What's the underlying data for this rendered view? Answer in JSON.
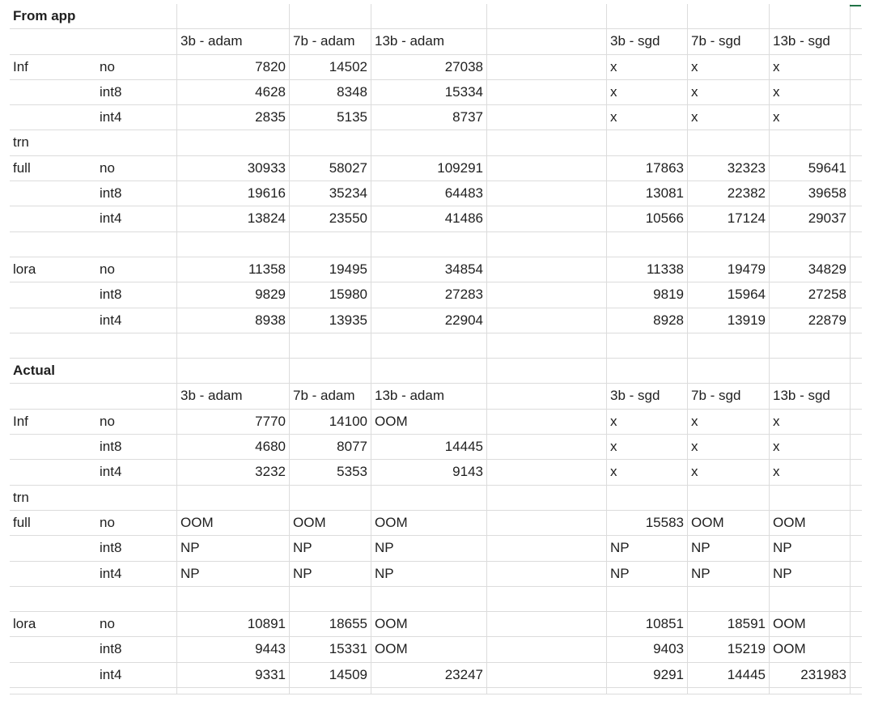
{
  "sheet": {
    "columns_header_adam": [
      "3b - adam",
      "7b - adam",
      "13b - adam"
    ],
    "sections": [
      {
        "title": "From app",
        "rows": [
          [
            "From app",
            "",
            "",
            "",
            "",
            "",
            "",
            "",
            ""
          ],
          [
            "",
            "",
            "3b - adam",
            "7b - adam",
            "13b - adam",
            "",
            "3b - sgd",
            "7b - sgd",
            "13b - sgd"
          ],
          [
            "Inf",
            "no",
            "7820",
            "14502",
            "27038",
            "",
            "x",
            "x",
            "x"
          ],
          [
            "",
            "int8",
            "4628",
            "8348",
            "15334",
            "",
            "x",
            "x",
            "x"
          ],
          [
            "",
            "int4",
            "2835",
            "5135",
            "8737",
            "",
            "x",
            "x",
            "x"
          ],
          [
            "trn",
            "",
            "",
            "",
            "",
            "",
            "",
            "",
            ""
          ],
          [
            "full",
            "no",
            "30933",
            "58027",
            "109291",
            "",
            "17863",
            "32323",
            "59641"
          ],
          [
            "",
            "int8",
            "19616",
            "35234",
            "64483",
            "",
            "13081",
            "22382",
            "39658"
          ],
          [
            "",
            "int4",
            "13824",
            "23550",
            "41486",
            "",
            "10566",
            "17124",
            "29037"
          ],
          [
            "",
            "",
            "",
            "",
            "",
            "",
            "",
            "",
            ""
          ],
          [
            "lora",
            "no",
            "11358",
            "19495",
            "34854",
            "",
            "11338",
            "19479",
            "34829"
          ],
          [
            "",
            "int8",
            "9829",
            "15980",
            "27283",
            "",
            "9819",
            "15964",
            "27258"
          ],
          [
            "",
            "int4",
            "8938",
            "13935",
            "22904",
            "",
            "8928",
            "13919",
            "22879"
          ],
          [
            "",
            "",
            "",
            "",
            "",
            "",
            "",
            "",
            ""
          ]
        ]
      },
      {
        "title": "Actual",
        "rows": [
          [
            "Actual",
            "",
            "",
            "",
            "",
            "",
            "",
            "",
            ""
          ],
          [
            "",
            "",
            "3b - adam",
            "7b - adam",
            "13b - adam",
            "",
            "3b - sgd",
            "7b - sgd",
            "13b - sgd"
          ],
          [
            "Inf",
            "no",
            "7770",
            "14100",
            "OOM",
            "",
            "x",
            "x",
            "x"
          ],
          [
            "",
            "int8",
            "4680",
            "8077",
            "14445",
            "",
            "x",
            "x",
            "x"
          ],
          [
            "",
            "int4",
            "3232",
            "5353",
            "9143",
            "",
            "x",
            "x",
            "x"
          ],
          [
            "trn",
            "",
            "",
            "",
            "",
            "",
            "",
            "",
            ""
          ],
          [
            "full",
            "no",
            "OOM",
            "OOM",
            "OOM",
            "",
            "15583",
            "OOM",
            "OOM"
          ],
          [
            "",
            "int8",
            "NP",
            "NP",
            "NP",
            "",
            "NP",
            "NP",
            "NP"
          ],
          [
            "",
            "int4",
            "NP",
            "NP",
            "NP",
            "",
            "NP",
            "NP",
            "NP"
          ],
          [
            "",
            "",
            "",
            "",
            "",
            "",
            "",
            "",
            ""
          ],
          [
            "lora",
            "no",
            "10891",
            "18655",
            "OOM",
            "",
            "10851",
            "18591",
            "OOM"
          ],
          [
            "",
            "int8",
            "9443",
            "15331",
            "OOM",
            "",
            "9403",
            "15219",
            "OOM"
          ],
          [
            "",
            "int4",
            "9331",
            "14509",
            "23247",
            "",
            "9291",
            "14445",
            "231983"
          ]
        ]
      }
    ],
    "selection_color": "#217346"
  }
}
